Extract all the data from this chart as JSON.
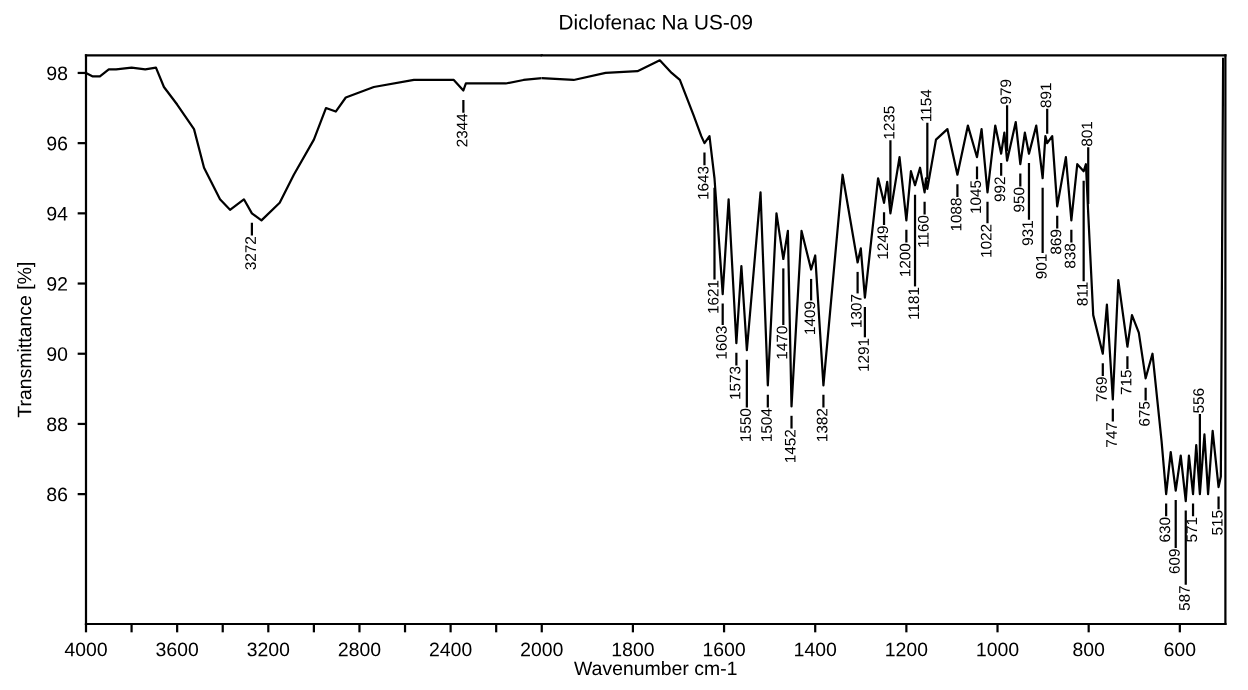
{
  "chart_data": [
    {
      "type": "line",
      "ylabel": "Transmittance [%]",
      "xlim": [
        4000,
        2000
      ],
      "xticks": [
        4000,
        {
          "value": 3800,
          "label": null
        },
        3600,
        {
          "value": 3400,
          "label": null
        },
        3200,
        {
          "value": 3000,
          "label": null
        },
        2800,
        {
          "value": 2600,
          "label": null
        },
        2400,
        {
          "value": 2200,
          "label": null
        },
        2000
      ],
      "ylim": [
        82.3,
        98.5
      ],
      "yticks": [
        86,
        88,
        90,
        92,
        94,
        96,
        98
      ],
      "grid": false,
      "legend": false,
      "series": [
        {
          "color": "#000000",
          "x": [
            4000,
            3970,
            3939,
            3900,
            3868,
            3800,
            3740,
            3693,
            3658,
            3600,
            3526,
            3482,
            3412,
            3368,
            3307,
            3272,
            3230,
            3150,
            3088,
            3000,
            2947,
            2904,
            2860,
            2737,
            2561,
            2386,
            2344,
            2333,
            2250,
            2158,
            2080,
            2000
          ],
          "values": [
            98.0,
            97.9,
            97.9,
            98.1,
            98.1,
            98.15,
            98.1,
            98.15,
            97.6,
            97.1,
            96.4,
            95.3,
            94.4,
            94.1,
            94.4,
            94.0,
            93.8,
            94.3,
            95.1,
            96.1,
            97.0,
            96.9,
            97.3,
            97.6,
            97.8,
            97.8,
            97.5,
            97.7,
            97.7,
            97.7,
            97.8,
            97.85
          ]
        }
      ],
      "annotations": [
        {
          "text": "3272",
          "x": 3272,
          "y": 94.0
        },
        {
          "text": "2344",
          "x": 2344,
          "y": 97.5
        }
      ]
    },
    {
      "type": "line",
      "title": "Diclofenac Na US-09",
      "xlabel": "Wavenumber cm-1",
      "tick_labels": "x",
      "xlim": [
        2000,
        500
      ],
      "xticks": [
        1800,
        1600,
        1400,
        1200,
        1000,
        800,
        600
      ],
      "ylim": [
        82.3,
        98.5
      ],
      "grid": false,
      "legend": false,
      "series": [
        {
          "color": "#000000",
          "x": [
            2000,
            1930,
            1860,
            1790,
            1741,
            1715,
            1697,
            1667,
            1650,
            1643,
            1632,
            1621,
            1610,
            1603,
            1590,
            1573,
            1562,
            1550,
            1520,
            1504,
            1485,
            1470,
            1460,
            1452,
            1430,
            1409,
            1400,
            1382,
            1340,
            1307,
            1300,
            1291,
            1262,
            1249,
            1242,
            1235,
            1215,
            1200,
            1190,
            1181,
            1170,
            1160,
            1157,
            1154,
            1135,
            1110,
            1088,
            1065,
            1045,
            1035,
            1022,
            1005,
            992,
            985,
            979,
            960,
            950,
            940,
            931,
            915,
            901,
            895,
            891,
            880,
            869,
            850,
            838,
            825,
            818,
            811,
            806,
            801,
            790,
            769,
            760,
            747,
            735,
            715,
            705,
            690,
            675,
            660,
            640,
            630,
            620,
            609,
            598,
            587,
            580,
            571,
            564,
            556,
            546,
            538,
            528,
            515,
            510,
            505
          ],
          "values": [
            97.85,
            97.8,
            98.0,
            98.05,
            98.36,
            98.0,
            97.8,
            96.8,
            96.2,
            96.0,
            96.2,
            95.0,
            93.0,
            91.7,
            94.4,
            90.3,
            92.5,
            90.1,
            94.6,
            89.1,
            94.0,
            92.7,
            93.5,
            88.5,
            93.5,
            92.4,
            92.8,
            89.1,
            95.1,
            92.6,
            93.0,
            91.6,
            95.0,
            94.3,
            94.9,
            94.0,
            95.6,
            93.8,
            95.2,
            94.8,
            95.3,
            94.6,
            95.0,
            94.7,
            96.1,
            96.4,
            95.1,
            96.5,
            95.6,
            96.4,
            94.6,
            96.5,
            95.7,
            96.3,
            95.5,
            96.6,
            95.4,
            96.3,
            95.7,
            96.5,
            95.0,
            96.2,
            96.0,
            96.2,
            94.2,
            95.6,
            93.8,
            95.4,
            95.3,
            95.2,
            95.4,
            94.0,
            91.1,
            90.0,
            91.4,
            88.7,
            92.1,
            90.2,
            91.1,
            90.6,
            89.3,
            90.0,
            87.5,
            86.0,
            87.2,
            86.1,
            87.1,
            85.8,
            87.1,
            86.0,
            87.4,
            86.0,
            87.7,
            86.0,
            87.8,
            86.2,
            86.5,
            98.4
          ]
        }
      ],
      "annotations": [
        {
          "text": "1643",
          "x": 1643,
          "y": 96.0
        },
        {
          "text": "1621",
          "x": 1621,
          "y": 95.0
        },
        {
          "text": "1603",
          "x": 1603,
          "y": 91.7
        },
        {
          "text": "1573",
          "x": 1573,
          "y": 90.3
        },
        {
          "text": "1550",
          "x": 1550,
          "y": 90.1
        },
        {
          "text": "1504",
          "x": 1504,
          "y": 89.1
        },
        {
          "text": "1470",
          "x": 1470,
          "y": 92.7
        },
        {
          "text": "1452",
          "x": 1452,
          "y": 88.5
        },
        {
          "text": "1409",
          "x": 1409,
          "y": 92.4
        },
        {
          "text": "1382",
          "x": 1382,
          "y": 89.1
        },
        {
          "text": "1307",
          "x": 1307,
          "y": 92.6
        },
        {
          "text": "1291",
          "x": 1291,
          "y": 91.6
        },
        {
          "text": "1249",
          "x": 1249,
          "y": 94.3
        },
        {
          "text": "1235",
          "x": 1235,
          "y": 94.0
        },
        {
          "text": "1200",
          "x": 1200,
          "y": 93.8
        },
        {
          "text": "1181",
          "x": 1181,
          "y": 94.8
        },
        {
          "text": "1160",
          "x": 1160,
          "y": 94.6
        },
        {
          "text": "1154",
          "x": 1154,
          "y": 94.7
        },
        {
          "text": "1088",
          "x": 1088,
          "y": 95.1
        },
        {
          "text": "1045",
          "x": 1045,
          "y": 95.6
        },
        {
          "text": "1022",
          "x": 1022,
          "y": 94.6
        },
        {
          "text": "992",
          "x": 992,
          "y": 95.7
        },
        {
          "text": "979",
          "x": 979,
          "y": 95.5
        },
        {
          "text": "950",
          "x": 950,
          "y": 95.4
        },
        {
          "text": "931",
          "x": 931,
          "y": 95.7
        },
        {
          "text": "901",
          "x": 901,
          "y": 95.0
        },
        {
          "text": "891",
          "x": 891,
          "y": 96.0
        },
        {
          "text": "869",
          "x": 869,
          "y": 94.2
        },
        {
          "text": "838",
          "x": 838,
          "y": 93.8
        },
        {
          "text": "811",
          "x": 811,
          "y": 95.2
        },
        {
          "text": "801",
          "x": 801,
          "y": 94.0
        },
        {
          "text": "769",
          "x": 769,
          "y": 90.0
        },
        {
          "text": "747",
          "x": 747,
          "y": 88.7
        },
        {
          "text": "715",
          "x": 715,
          "y": 90.2
        },
        {
          "text": "675",
          "x": 675,
          "y": 89.3
        },
        {
          "text": "630",
          "x": 630,
          "y": 86.0
        },
        {
          "text": "609",
          "x": 609,
          "y": 86.1
        },
        {
          "text": "587",
          "x": 587,
          "y": 85.8
        },
        {
          "text": "571",
          "x": 571,
          "y": 86.0
        },
        {
          "text": "556",
          "x": 556,
          "y": 86.0
        },
        {
          "text": "515",
          "x": 515,
          "y": 86.2
        }
      ]
    }
  ]
}
